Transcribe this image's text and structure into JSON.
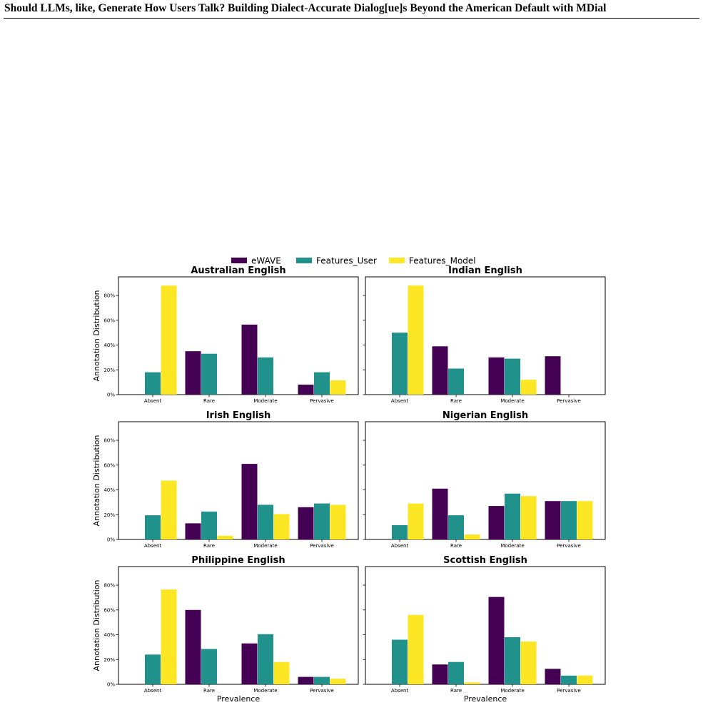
{
  "page": {
    "header_title": "Should LLMs, like, Generate How Users Talk? Building Dialect-Accurate Dialog[ue]s Beyond the American Default with MDial"
  },
  "colors": {
    "eWAVE": "#440154",
    "Features_User": "#21918c",
    "Features_Model": "#fde725"
  },
  "chart_data": {
    "type": "bar",
    "legend": {
      "placement": "top-center",
      "entries": [
        "eWAVE",
        "Features_User",
        "Features_Model"
      ]
    },
    "categories": [
      "Absent",
      "Rare",
      "Moderate",
      "Pervasive"
    ],
    "ylabel": "Annotation Distribution",
    "xlabel": "Prevalence",
    "ylim": [
      0,
      0.95
    ],
    "yticks": [
      "0%",
      "20%",
      "40%",
      "60%",
      "80%"
    ],
    "grid": false,
    "panels": [
      {
        "title": "Australian English",
        "series": [
          {
            "name": "eWAVE",
            "values": [
              0.0,
              0.35,
              0.565,
              0.08
            ]
          },
          {
            "name": "Features_User",
            "values": [
              0.18,
              0.33,
              0.3,
              0.18
            ]
          },
          {
            "name": "Features_Model",
            "values": [
              0.88,
              0.0,
              0.0,
              0.115
            ]
          }
        ]
      },
      {
        "title": "Indian English",
        "series": [
          {
            "name": "eWAVE",
            "values": [
              0.0,
              0.39,
              0.3,
              0.31
            ]
          },
          {
            "name": "Features_User",
            "values": [
              0.5,
              0.21,
              0.29,
              0.0
            ]
          },
          {
            "name": "Features_Model",
            "values": [
              0.88,
              0.0,
              0.12,
              0.0
            ]
          }
        ]
      },
      {
        "title": "Irish English",
        "series": [
          {
            "name": "eWAVE",
            "values": [
              0.0,
              0.13,
              0.61,
              0.26
            ]
          },
          {
            "name": "Features_User",
            "values": [
              0.195,
              0.225,
              0.28,
              0.29
            ]
          },
          {
            "name": "Features_Model",
            "values": [
              0.475,
              0.03,
              0.205,
              0.28
            ]
          }
        ]
      },
      {
        "title": "Nigerian English",
        "series": [
          {
            "name": "eWAVE",
            "values": [
              0.0,
              0.41,
              0.27,
              0.31
            ]
          },
          {
            "name": "Features_User",
            "values": [
              0.115,
              0.195,
              0.37,
              0.31
            ]
          },
          {
            "name": "Features_Model",
            "values": [
              0.29,
              0.04,
              0.35,
              0.31
            ]
          }
        ]
      },
      {
        "title": "Philippine English",
        "series": [
          {
            "name": "eWAVE",
            "values": [
              0.0,
              0.6,
              0.33,
              0.06
            ]
          },
          {
            "name": "Features_User",
            "values": [
              0.24,
              0.285,
              0.405,
              0.06
            ]
          },
          {
            "name": "Features_Model",
            "values": [
              0.765,
              0.0,
              0.18,
              0.045
            ]
          }
        ]
      },
      {
        "title": "Scottish English",
        "series": [
          {
            "name": "eWAVE",
            "values": [
              0.0,
              0.16,
              0.705,
              0.125
            ]
          },
          {
            "name": "Features_User",
            "values": [
              0.36,
              0.18,
              0.38,
              0.07
            ]
          },
          {
            "name": "Features_Model",
            "values": [
              0.56,
              0.015,
              0.345,
              0.07
            ]
          }
        ]
      }
    ]
  }
}
